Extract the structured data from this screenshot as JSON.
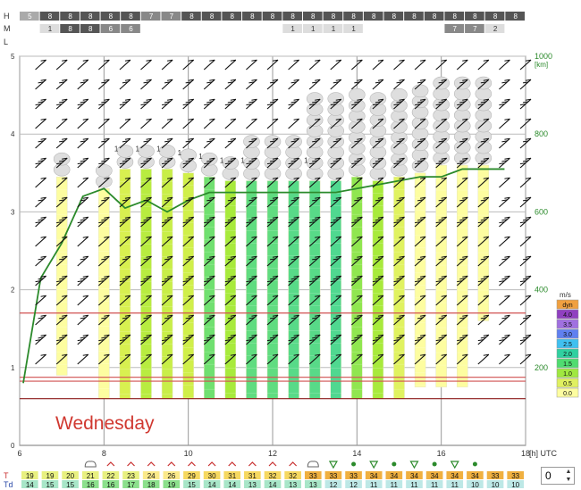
{
  "chart_data": {
    "type": "meteogram",
    "day_label": "Wednesday",
    "x_axis": {
      "unit_label": "[h] UTC",
      "range": [
        6,
        18
      ],
      "ticks": [
        6,
        8,
        10,
        12,
        14,
        16,
        18
      ]
    },
    "y_left": {
      "range": [
        0,
        10
      ],
      "ticks": [
        0,
        1,
        2,
        3,
        4,
        5
      ]
    },
    "y_right": {
      "unit_label": "[km]",
      "range_m": [
        0,
        1000
      ],
      "ticks": [
        200,
        400,
        600,
        800,
        1000
      ]
    },
    "cloud_rows": {
      "labels": [
        "H",
        "M",
        "L"
      ],
      "high": [
        "5",
        "8",
        "8",
        "8",
        "8",
        "8",
        "7",
        "7",
        "8",
        "8",
        "8",
        "8",
        "8",
        "8",
        "8",
        "8",
        "8",
        "8",
        "8",
        "8",
        "8",
        "8",
        "8",
        "8",
        "8"
      ],
      "middle": [
        "",
        "1",
        "8",
        "8",
        "6",
        "6",
        "",
        "",
        "",
        "",
        "",
        "",
        "",
        "1",
        "1",
        "1",
        "1",
        "",
        "",
        "",
        "",
        "7",
        "7",
        "2",
        ""
      ]
    },
    "times": [
      6.5,
      7.0,
      7.5,
      8.0,
      8.5,
      9.0,
      9.5,
      10.0,
      10.5,
      11.0,
      11.5,
      12.0,
      12.5,
      13.0,
      13.5,
      14.0,
      14.5,
      15.0,
      15.5,
      16.0,
      16.5,
      17.0,
      17.5
    ],
    "boundary_layer_km": [
      430,
      520,
      640,
      660,
      610,
      630,
      600,
      630,
      650,
      650,
      650,
      650,
      650,
      650,
      650,
      660,
      670,
      680,
      690,
      690,
      710,
      710,
      710
    ],
    "thermal_columns": [
      {
        "t": 6.5,
        "base": 0,
        "top": 0,
        "color": "#ffffff"
      },
      {
        "t": 7.0,
        "base": 180,
        "top": 690,
        "color": "#fdfda0"
      },
      {
        "t": 7.5,
        "base": 0,
        "top": 0,
        "color": "#ffffff"
      },
      {
        "t": 8.0,
        "base": 120,
        "top": 660,
        "color": "#fdfda0"
      },
      {
        "t": 8.5,
        "base": 120,
        "top": 710,
        "color": "#d8f050"
      },
      {
        "t": 9.0,
        "base": 120,
        "top": 710,
        "color": "#b8ec40"
      },
      {
        "t": 9.5,
        "base": 120,
        "top": 710,
        "color": "#c8ee48"
      },
      {
        "t": 10.0,
        "base": 120,
        "top": 700,
        "color": "#d0ef4a"
      },
      {
        "t": 10.5,
        "base": 120,
        "top": 690,
        "color": "#70e070"
      },
      {
        "t": 11.0,
        "base": 120,
        "top": 680,
        "color": "#a8ea3c"
      },
      {
        "t": 11.5,
        "base": 120,
        "top": 680,
        "color": "#60dc80"
      },
      {
        "t": 12.0,
        "base": 120,
        "top": 680,
        "color": "#60dc80"
      },
      {
        "t": 12.5,
        "base": 120,
        "top": 680,
        "color": "#58da88"
      },
      {
        "t": 13.0,
        "base": 120,
        "top": 680,
        "color": "#58da88"
      },
      {
        "t": 13.5,
        "base": 120,
        "top": 680,
        "color": "#50d890"
      },
      {
        "t": 14.0,
        "base": 120,
        "top": 690,
        "color": "#90e650"
      },
      {
        "t": 14.5,
        "base": 120,
        "top": 680,
        "color": "#a8ea3c"
      },
      {
        "t": 15.0,
        "base": 120,
        "top": 690,
        "color": "#e0f260"
      },
      {
        "t": 15.5,
        "base": 150,
        "top": 700,
        "color": "#fdfda0"
      },
      {
        "t": 16.0,
        "base": 150,
        "top": 720,
        "color": "#fdfda0"
      },
      {
        "t": 16.5,
        "base": 150,
        "top": 720,
        "color": "#fdfda0"
      },
      {
        "t": 17.0,
        "base": 320,
        "top": 720,
        "color": "#fdfda0"
      },
      {
        "t": 17.5,
        "base": 0,
        "top": 0,
        "color": "#ffffff"
      }
    ],
    "cumulus_counts": [
      "",
      "",
      "",
      "",
      "1",
      "1",
      "1",
      "1",
      "1",
      "1",
      "1",
      "",
      "",
      "1",
      "",
      "",
      "",
      "",
      "",
      "",
      "",
      "",
      ""
    ],
    "legend": {
      "unit": "m/s",
      "entries": [
        {
          "label": "dyn",
          "color": "#f0a040"
        },
        {
          "label": "4.0",
          "color": "#9040c0"
        },
        {
          "label": "3.5",
          "color": "#a070e0"
        },
        {
          "label": "3.0",
          "color": "#6080f0"
        },
        {
          "label": "2.5",
          "color": "#40c0f0"
        },
        {
          "label": "2.0",
          "color": "#30d0a0"
        },
        {
          "label": "1.5",
          "color": "#50dc70"
        },
        {
          "label": "1.0",
          "color": "#a0e840"
        },
        {
          "label": "0.5",
          "color": "#e0f060"
        },
        {
          "label": "0.0",
          "color": "#fdfda0"
        }
      ]
    },
    "temperature": {
      "label": "T",
      "values": [
        19,
        19,
        20,
        21,
        22,
        23,
        24,
        26,
        29,
        30,
        31,
        31,
        32,
        32,
        33,
        33,
        33,
        34,
        34,
        34,
        34,
        34,
        34,
        33,
        33
      ]
    },
    "dewpoint": {
      "label": "Td",
      "values": [
        14,
        15,
        15,
        16,
        16,
        17,
        18,
        19,
        15,
        14,
        14,
        13,
        14,
        13,
        13,
        12,
        12,
        11,
        11,
        11,
        11,
        11,
        10,
        10,
        10
      ]
    },
    "weather_symbols": [
      "",
      "",
      "",
      "cloud",
      "cap",
      "cap",
      "cap",
      "cap",
      "cap",
      "cap",
      "cap",
      "cap",
      "cap",
      "cap",
      "cloud",
      "tri",
      "dot",
      "tri",
      "dot",
      "tri",
      "dot",
      "tri",
      "dot",
      "",
      ""
    ],
    "day_offset_value": "0"
  }
}
